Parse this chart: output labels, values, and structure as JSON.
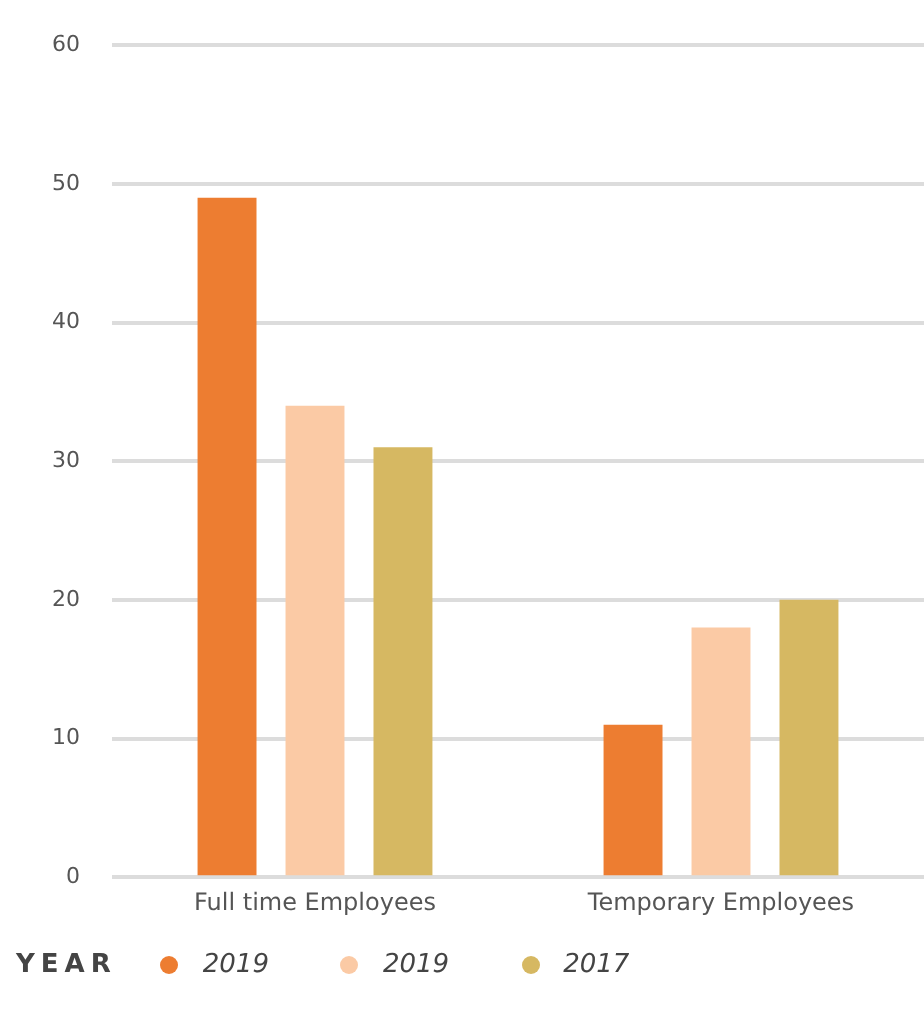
{
  "chart_data": {
    "type": "bar",
    "categories": [
      "Full time Employees",
      "Temporary Employees"
    ],
    "series": [
      {
        "name": "2019",
        "color": "#ed7d31",
        "values": [
          49,
          11
        ]
      },
      {
        "name": "2019",
        "color": "#fbcaa5",
        "values": [
          34,
          18
        ]
      },
      {
        "name": "2017",
        "color": "#d6b862",
        "values": [
          31,
          20
        ]
      }
    ],
    "ylim": [
      0,
      60
    ],
    "yticks": [
      0,
      10,
      20,
      30,
      40,
      50,
      60
    ],
    "grid": "y",
    "legend": "bottom left",
    "legend_title": "YEAR",
    "marker": "circle"
  }
}
